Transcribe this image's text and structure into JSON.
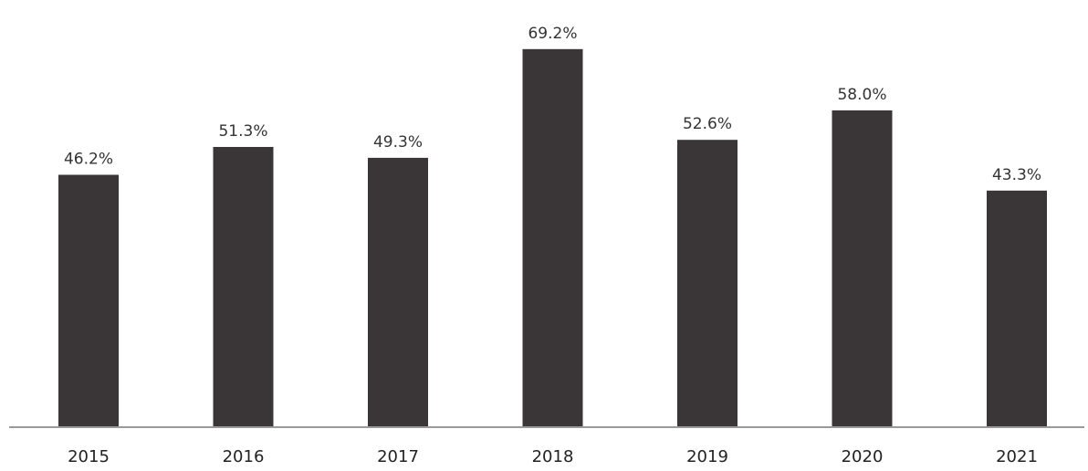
{
  "chart_data": {
    "type": "bar",
    "categories": [
      "2015",
      "2016",
      "2017",
      "2018",
      "2019",
      "2020",
      "2021"
    ],
    "values": [
      46.2,
      51.3,
      49.3,
      69.2,
      52.6,
      58.0,
      43.3
    ],
    "data_labels": [
      "46.2%",
      "51.3%",
      "49.3%",
      "69.2%",
      "52.6%",
      "58.0%",
      "43.3%"
    ],
    "title": "",
    "xlabel": "",
    "ylabel": "",
    "ylim": [
      0,
      80
    ],
    "grid": false,
    "legend": "none",
    "bar_color": "#3a3638",
    "axis_color": "#9a9a9a"
  }
}
